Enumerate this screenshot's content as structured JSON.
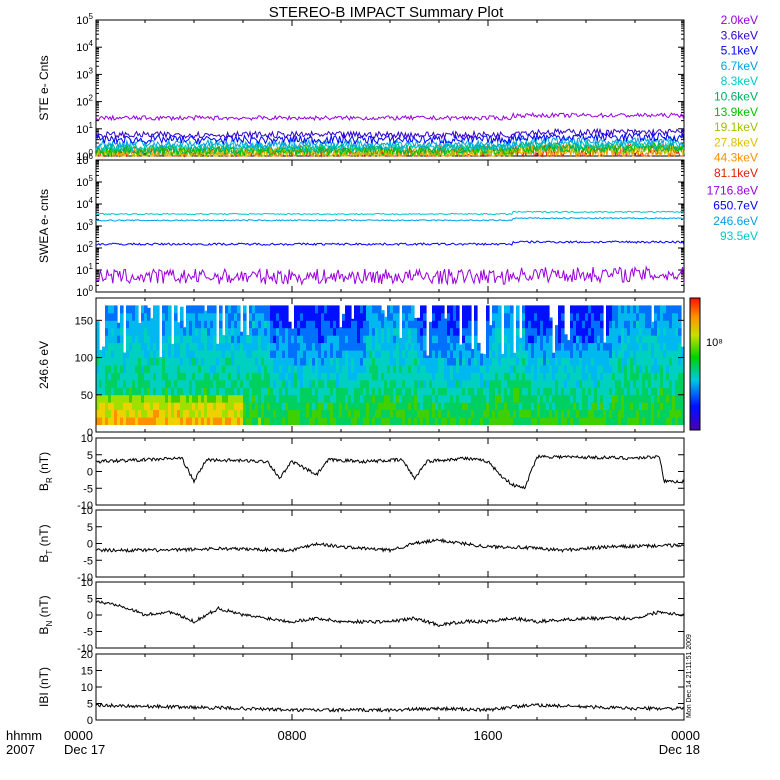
{
  "title": "STEREO-B IMPACT Summary Plot",
  "stamp": "Mon Dec 14 21:11:51 2009",
  "colorbar_label": "10⁸",
  "time_axis": {
    "corner_top": "hhmm",
    "corner_bottom": "2007",
    "ticks": [
      {
        "label": "0000",
        "sub": "Dec 17",
        "hours": 0
      },
      {
        "label": "0800",
        "sub": "",
        "hours": 8
      },
      {
        "label": "1600",
        "sub": "",
        "hours": 16
      },
      {
        "label": "0000",
        "sub": "Dec 18",
        "hours": 24
      }
    ]
  },
  "chart_data": [
    {
      "type": "line",
      "ylabel": "STE e- Cnts",
      "yscale": "log",
      "ylim": [
        1,
        100000
      ],
      "yticks": [
        {
          "base": "10",
          "exp": "0"
        },
        {
          "base": "10",
          "exp": "1"
        },
        {
          "base": "10",
          "exp": "2"
        },
        {
          "base": "10",
          "exp": "3"
        },
        {
          "base": "10",
          "exp": "4"
        },
        {
          "base": "10",
          "exp": "5"
        }
      ],
      "x_unit": "hours since 0000 Dec 17",
      "series": [
        {
          "name": "2.0keV",
          "color": "#9900dd",
          "level": 25,
          "noise": 0.08
        },
        {
          "name": "3.6keV",
          "color": "#3300cc",
          "level": 6,
          "noise": 0.12
        },
        {
          "name": "5.1keV",
          "color": "#0000ff",
          "level": 4,
          "noise": 0.15
        },
        {
          "name": "6.7keV",
          "color": "#00a0e0",
          "level": 2.8,
          "noise": 0.15
        },
        {
          "name": "8.3keV",
          "color": "#00c8c8",
          "level": 2.2,
          "noise": 0.15
        },
        {
          "name": "10.6keV",
          "color": "#00b060",
          "level": 1.8,
          "noise": 0.18
        },
        {
          "name": "13.9keV",
          "color": "#00c000",
          "level": 1.6,
          "noise": 0.18
        },
        {
          "name": "19.1keV",
          "color": "#a0c000",
          "level": 1.4,
          "noise": 0.2
        },
        {
          "name": "27.8keV",
          "color": "#e0c000",
          "level": 1.3,
          "noise": 0.2
        },
        {
          "name": "44.3keV",
          "color": "#ff9000",
          "level": 1.2,
          "noise": 0.25
        },
        {
          "name": "81.1keV",
          "color": "#e02000",
          "level": 1.15,
          "noise": 0.3
        }
      ]
    },
    {
      "type": "line",
      "ylabel": "SWEA e- cnts",
      "yscale": "log",
      "ylim": [
        1,
        1000000
      ],
      "yticks": [
        {
          "base": "10",
          "exp": "0"
        },
        {
          "base": "10",
          "exp": "1"
        },
        {
          "base": "10",
          "exp": "2"
        },
        {
          "base": "10",
          "exp": "3"
        },
        {
          "base": "10",
          "exp": "4"
        },
        {
          "base": "10",
          "exp": "5"
        },
        {
          "base": "10",
          "exp": "6"
        }
      ],
      "series": [
        {
          "name": "1716.8eV",
          "color": "#9900dd",
          "level": 5,
          "noise": 0.35
        },
        {
          "name": "650.7eV",
          "color": "#0000ff",
          "level": 150,
          "noise": 0.05
        },
        {
          "name": "246.6eV",
          "color": "#00a0e0",
          "level": 1800,
          "noise": 0.03
        },
        {
          "name": "93.5eV",
          "color": "#00c8c8",
          "level": 3500,
          "noise": 0.03
        }
      ]
    },
    {
      "type": "heatmap",
      "ylabel": "246.6 eV",
      "ylim": [
        0,
        180
      ],
      "yticks": [
        "0",
        "50",
        "100",
        "150"
      ],
      "ytick_values": [
        0,
        50,
        100,
        150
      ],
      "y_data_range": [
        10,
        170
      ]
    },
    {
      "type": "line",
      "ylabel": {
        "main": "B",
        "sub": "R",
        "unit": " (nT)"
      },
      "ylim": [
        -10,
        10
      ],
      "yticks": [
        "-10",
        "-5",
        "0",
        "5",
        "10"
      ],
      "ytick_values": [
        -10,
        -5,
        0,
        5,
        10
      ],
      "color": "#000000",
      "anchors": [
        [
          0,
          3
        ],
        [
          2,
          3.5
        ],
        [
          3.5,
          4
        ],
        [
          4,
          -3
        ],
        [
          4.5,
          3.5
        ],
        [
          7,
          3
        ],
        [
          7.5,
          -2
        ],
        [
          8,
          3
        ],
        [
          9,
          -1
        ],
        [
          9.5,
          3.5
        ],
        [
          11,
          3
        ],
        [
          12.5,
          3.5
        ],
        [
          13,
          -2
        ],
        [
          13.5,
          3
        ],
        [
          15,
          4
        ],
        [
          16,
          3
        ],
        [
          16.5,
          -1
        ],
        [
          17,
          -4
        ],
        [
          17.5,
          -5
        ],
        [
          18,
          4.5
        ],
        [
          22,
          4
        ],
        [
          23,
          4.5
        ],
        [
          23.2,
          -3
        ],
        [
          24,
          -3
        ]
      ]
    },
    {
      "type": "line",
      "ylabel": {
        "main": "B",
        "sub": "T",
        "unit": " (nT)"
      },
      "ylim": [
        -10,
        10
      ],
      "yticks": [
        "-10",
        "-5",
        "0",
        "5",
        "10"
      ],
      "ytick_values": [
        -10,
        -5,
        0,
        5,
        10
      ],
      "color": "#000000",
      "anchors": [
        [
          0,
          -2
        ],
        [
          3,
          -2
        ],
        [
          5,
          -1.5
        ],
        [
          8,
          -2
        ],
        [
          9,
          0
        ],
        [
          10,
          -1
        ],
        [
          12,
          -2
        ],
        [
          13,
          0
        ],
        [
          14,
          1
        ],
        [
          15,
          0
        ],
        [
          16,
          -1
        ],
        [
          17,
          -1
        ],
        [
          19,
          -2
        ],
        [
          21,
          -1
        ],
        [
          24,
          -0.5
        ]
      ]
    },
    {
      "type": "line",
      "ylabel": {
        "main": "B",
        "sub": "N",
        "unit": " (nT)"
      },
      "ylim": [
        -10,
        10
      ],
      "yticks": [
        "-10",
        "-5",
        "0",
        "5",
        "10"
      ],
      "ytick_values": [
        -10,
        -5,
        0,
        5,
        10
      ],
      "color": "#000000",
      "anchors": [
        [
          0,
          4
        ],
        [
          1,
          3
        ],
        [
          2,
          0
        ],
        [
          3,
          1
        ],
        [
          4,
          -2
        ],
        [
          5,
          2
        ],
        [
          6,
          0
        ],
        [
          7,
          -1
        ],
        [
          8,
          -2
        ],
        [
          9,
          -1
        ],
        [
          10,
          -2
        ],
        [
          12,
          -2
        ],
        [
          13,
          -1
        ],
        [
          14,
          -3
        ],
        [
          15,
          -2
        ],
        [
          16,
          -2
        ],
        [
          17,
          -1
        ],
        [
          18,
          -2
        ],
        [
          20,
          -1
        ],
        [
          22,
          -1
        ],
        [
          23,
          1
        ],
        [
          24,
          0
        ]
      ]
    },
    {
      "type": "line",
      "ylabel": "IBI (nT)",
      "ylim": [
        0,
        20
      ],
      "yticks": [
        "0",
        "5",
        "10",
        "15",
        "20"
      ],
      "ytick_values": [
        0,
        5,
        10,
        15,
        20
      ],
      "color": "#000000",
      "anchors": [
        [
          0,
          4.5
        ],
        [
          3,
          4
        ],
        [
          6,
          3.5
        ],
        [
          8,
          3
        ],
        [
          10,
          3
        ],
        [
          12,
          3
        ],
        [
          14,
          3.5
        ],
        [
          16,
          3
        ],
        [
          17,
          4
        ],
        [
          18,
          4.5
        ],
        [
          20,
          4
        ],
        [
          22,
          3.5
        ],
        [
          24,
          3.5
        ]
      ]
    }
  ]
}
